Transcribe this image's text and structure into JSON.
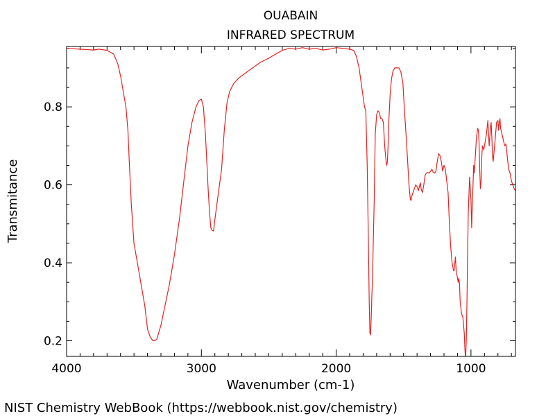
{
  "chart_data": {
    "type": "line",
    "title": "OUABAIN",
    "subtitle": "INFRARED SPECTRUM",
    "xlabel": "Wavenumber (cm-1)",
    "ylabel": "Transmitance",
    "xlim": [
      4000,
      670
    ],
    "ylim": [
      0.16,
      0.955
    ],
    "x_ticks": [
      4000,
      3000,
      2000,
      1000
    ],
    "y_ticks": [
      0.2,
      0.4,
      0.6,
      0.8
    ],
    "x_tick_labels": [
      "4000",
      "3000",
      "2000",
      "1000"
    ],
    "y_tick_labels": [
      "0.2",
      "0.4",
      "0.6",
      "0.8"
    ],
    "grid": false,
    "legend": "none",
    "series": [
      {
        "color": "#e8201f",
        "x": [
          4000,
          3900,
          3800,
          3760,
          3700,
          3650,
          3620,
          3600,
          3580,
          3560,
          3545,
          3535,
          3520,
          3500,
          3470,
          3440,
          3420,
          3400,
          3380,
          3360,
          3345,
          3330,
          3300,
          3270,
          3240,
          3200,
          3160,
          3130,
          3100,
          3070,
          3040,
          3020,
          3000,
          2985,
          2970,
          2960,
          2950,
          2940,
          2930,
          2920,
          2910,
          2900,
          2885,
          2870,
          2850,
          2830,
          2810,
          2790,
          2760,
          2720,
          2680,
          2640,
          2600,
          2560,
          2500,
          2450,
          2400,
          2350,
          2300,
          2250,
          2200,
          2150,
          2100,
          2050,
          2000,
          1950,
          1900,
          1870,
          1850,
          1830,
          1810,
          1790,
          1780,
          1770,
          1762,
          1755,
          1750,
          1745,
          1740,
          1735,
          1730,
          1725,
          1718,
          1710,
          1700,
          1690,
          1680,
          1670,
          1660,
          1650,
          1640,
          1630,
          1625,
          1620,
          1615,
          1610,
          1600,
          1590,
          1580,
          1565,
          1550,
          1535,
          1520,
          1505,
          1495,
          1480,
          1470,
          1460,
          1450,
          1445,
          1440,
          1430,
          1420,
          1410,
          1400,
          1390,
          1380,
          1375,
          1370,
          1360,
          1350,
          1340,
          1330,
          1320,
          1310,
          1300,
          1290,
          1280,
          1270,
          1260,
          1250,
          1240,
          1230,
          1220,
          1210,
          1200,
          1190,
          1180,
          1170,
          1160,
          1150,
          1140,
          1135,
          1130,
          1125,
          1120,
          1115,
          1110,
          1100,
          1095,
          1090,
          1085,
          1080,
          1070,
          1060,
          1050,
          1045,
          1040,
          1035,
          1030,
          1025,
          1020,
          1010,
          1000,
          995,
          990,
          980,
          975,
          970,
          960,
          950,
          945,
          940,
          935,
          930,
          925,
          920,
          915,
          905,
          895,
          885,
          875,
          865,
          855,
          850,
          845,
          840,
          835,
          830,
          820,
          810,
          800,
          795,
          790,
          785,
          780,
          770,
          760,
          750,
          740,
          730,
          720,
          710,
          700,
          690,
          680,
          670
        ],
        "y": [
          0.95,
          0.948,
          0.946,
          0.948,
          0.945,
          0.935,
          0.91,
          0.88,
          0.84,
          0.8,
          0.74,
          0.66,
          0.55,
          0.45,
          0.39,
          0.33,
          0.29,
          0.23,
          0.21,
          0.2,
          0.2,
          0.205,
          0.24,
          0.29,
          0.34,
          0.42,
          0.52,
          0.61,
          0.7,
          0.76,
          0.8,
          0.815,
          0.82,
          0.8,
          0.73,
          0.66,
          0.59,
          0.53,
          0.49,
          0.483,
          0.482,
          0.51,
          0.55,
          0.59,
          0.64,
          0.74,
          0.81,
          0.84,
          0.86,
          0.875,
          0.885,
          0.895,
          0.905,
          0.915,
          0.925,
          0.935,
          0.945,
          0.95,
          0.948,
          0.952,
          0.948,
          0.95,
          0.946,
          0.948,
          0.952,
          0.95,
          0.948,
          0.945,
          0.93,
          0.9,
          0.85,
          0.8,
          0.79,
          0.65,
          0.48,
          0.3,
          0.22,
          0.215,
          0.26,
          0.32,
          0.36,
          0.45,
          0.56,
          0.73,
          0.78,
          0.79,
          0.785,
          0.77,
          0.77,
          0.76,
          0.7,
          0.66,
          0.65,
          0.66,
          0.7,
          0.76,
          0.83,
          0.87,
          0.89,
          0.9,
          0.9,
          0.9,
          0.89,
          0.86,
          0.8,
          0.72,
          0.66,
          0.6,
          0.562,
          0.56,
          0.57,
          0.58,
          0.59,
          0.6,
          0.595,
          0.585,
          0.6,
          0.605,
          0.59,
          0.58,
          0.6,
          0.625,
          0.63,
          0.632,
          0.63,
          0.635,
          0.64,
          0.632,
          0.63,
          0.635,
          0.66,
          0.68,
          0.675,
          0.66,
          0.635,
          0.65,
          0.64,
          0.61,
          0.58,
          0.5,
          0.44,
          0.4,
          0.39,
          0.38,
          0.38,
          0.4,
          0.415,
          0.38,
          0.36,
          0.35,
          0.36,
          0.345,
          0.3,
          0.27,
          0.26,
          0.22,
          0.18,
          0.15,
          0.2,
          0.3,
          0.42,
          0.53,
          0.62,
          0.56,
          0.49,
          0.55,
          0.65,
          0.63,
          0.66,
          0.72,
          0.745,
          0.74,
          0.71,
          0.64,
          0.59,
          0.61,
          0.67,
          0.7,
          0.69,
          0.71,
          0.73,
          0.765,
          0.7,
          0.75,
          0.76,
          0.72,
          0.67,
          0.66,
          0.68,
          0.72,
          0.76,
          0.765,
          0.74,
          0.76,
          0.77,
          0.745,
          0.73,
          0.715,
          0.7,
          0.705,
          0.67,
          0.64,
          0.63,
          0.61,
          0.6,
          0.59,
          0.585
        ]
      }
    ]
  },
  "credit": "NIST Chemistry WebBook (https://webbook.nist.gov/chemistry)"
}
